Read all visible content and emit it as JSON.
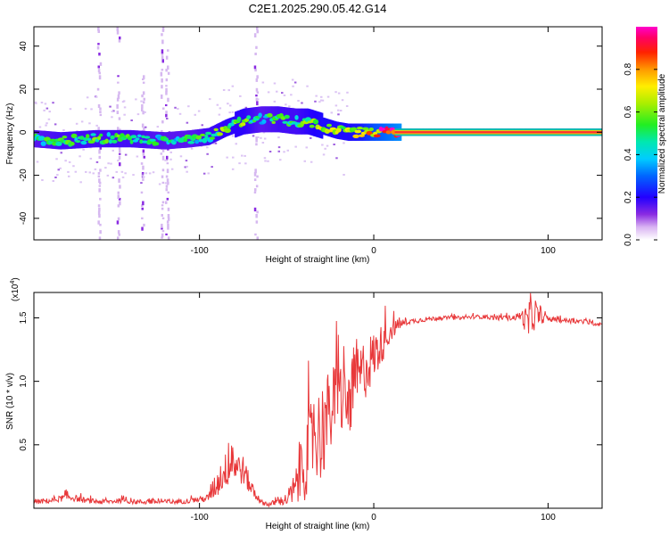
{
  "title": "C2E1.2025.290.05.42.G14",
  "colors": {
    "snr_line": "#e8383a",
    "band_core": "#ff3030",
    "frame": "#000000"
  },
  "chart_data": [
    {
      "type": "heatmap",
      "name": "spectrogram",
      "xlabel": "Height of straight line (km)",
      "ylabel": "Frequency (Hz)",
      "xlim": [
        -195,
        131
      ],
      "ylim": [
        -50,
        49
      ],
      "xticks": [
        -100,
        0,
        100
      ],
      "xtick_labels": [
        "-100",
        "0",
        "100"
      ],
      "yticks": [
        -40,
        -20,
        0,
        20,
        40
      ],
      "ytick_labels": [
        "-40",
        "-20",
        "0",
        "20",
        "40"
      ],
      "colorbar": {
        "label": "Normalized spectral amplitude",
        "range": [
          0,
          1
        ],
        "ticks": [
          0.0,
          0.2,
          0.4,
          0.6,
          0.8
        ],
        "tick_labels": [
          "0.0",
          "0.2",
          "0.4",
          "0.6",
          "0.8"
        ]
      },
      "ridge": {
        "height_km": [
          -195,
          -180,
          -160,
          -140,
          -120,
          -105,
          -95,
          -85,
          -75,
          -65,
          -55,
          -45,
          -38,
          -30,
          -22,
          -15,
          -8,
          0,
          5,
          10,
          15,
          40,
          80,
          131
        ],
        "frequency_hz": [
          -3,
          -4,
          -3,
          -3,
          -4,
          -3,
          -2,
          2,
          5,
          6,
          6,
          5,
          5,
          3,
          1,
          0,
          0,
          0,
          0,
          0,
          0,
          0,
          0,
          0
        ],
        "amplitude": [
          0.45,
          0.5,
          0.5,
          0.5,
          0.45,
          0.45,
          0.5,
          0.55,
          0.55,
          0.45,
          0.5,
          0.5,
          0.55,
          0.6,
          0.6,
          0.6,
          0.65,
          0.8,
          0.85,
          0.9,
          0.95,
          0.95,
          0.95,
          0.95
        ]
      },
      "streaks": [
        {
          "height_km": -158,
          "freq_range": [
            -50,
            49
          ]
        },
        {
          "height_km": -147,
          "freq_range": [
            -50,
            49
          ]
        },
        {
          "height_km": -133,
          "freq_range": [
            -50,
            30
          ]
        },
        {
          "height_km": -122,
          "freq_range": [
            -50,
            49
          ]
        },
        {
          "height_km": -119,
          "freq_range": [
            -50,
            40
          ]
        },
        {
          "height_km": -68,
          "freq_range": [
            -50,
            49
          ]
        }
      ]
    },
    {
      "type": "line",
      "name": "snr",
      "xlabel": "Height of straight line (km)",
      "ylabel": "SNR (10 * v/v)",
      "scale_label": "(x10",
      "scale_exponent": "4",
      "xlim": [
        -195,
        131
      ],
      "ylim": [
        0,
        1.7
      ],
      "xticks": [
        -100,
        0,
        100
      ],
      "xtick_labels": [
        "-100",
        "0",
        "100"
      ],
      "yticks": [
        0.5,
        1.0,
        1.5
      ],
      "ytick_labels": [
        "0.5",
        "1.0",
        "1.5"
      ],
      "series": [
        {
          "name": "SNR",
          "x": [
            -195,
            -185,
            -175,
            -165,
            -155,
            -145,
            -135,
            -125,
            -115,
            -105,
            -95,
            -90,
            -85,
            -80,
            -75,
            -70,
            -65,
            -60,
            -55,
            -50,
            -45,
            -40,
            -35,
            -30,
            -25,
            -20,
            -15,
            -10,
            -5,
            0,
            5,
            10,
            15,
            20,
            25,
            30,
            40,
            50,
            60,
            70,
            80,
            85,
            88,
            90,
            92,
            95,
            100,
            110,
            120,
            131
          ],
          "y": [
            0.05,
            0.06,
            0.09,
            0.06,
            0.05,
            0.06,
            0.05,
            0.05,
            0.05,
            0.06,
            0.08,
            0.2,
            0.3,
            0.35,
            0.3,
            0.15,
            0.05,
            0.03,
            0.05,
            0.07,
            0.15,
            0.35,
            0.55,
            0.6,
            0.75,
            0.9,
            0.8,
            1.0,
            1.1,
            1.2,
            1.3,
            1.4,
            1.45,
            1.47,
            1.48,
            1.49,
            1.5,
            1.5,
            1.51,
            1.5,
            1.5,
            1.52,
            1.45,
            1.5,
            1.55,
            1.5,
            1.49,
            1.48,
            1.47,
            1.45
          ],
          "noise": [
            0.02,
            0.02,
            0.03,
            0.02,
            0.02,
            0.02,
            0.02,
            0.02,
            0.02,
            0.02,
            0.03,
            0.12,
            0.14,
            0.14,
            0.12,
            0.06,
            0.02,
            0.02,
            0.03,
            0.05,
            0.15,
            0.3,
            0.35,
            0.4,
            0.35,
            0.3,
            0.3,
            0.25,
            0.25,
            0.2,
            0.15,
            0.08,
            0.04,
            0.02,
            0.02,
            0.02,
            0.015,
            0.015,
            0.015,
            0.02,
            0.02,
            0.04,
            0.15,
            0.2,
            0.15,
            0.05,
            0.02,
            0.02,
            0.02,
            0.02
          ]
        }
      ]
    }
  ]
}
